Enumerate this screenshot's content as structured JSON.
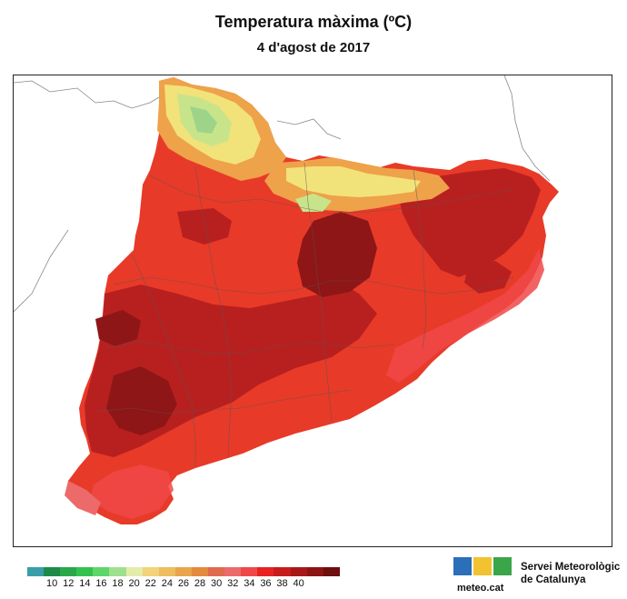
{
  "title": "Temperatura màxima (ºC)",
  "subtitle": "4 d'agost de 2017",
  "legend": {
    "colors": [
      "#3a9ea8",
      "#1e8a4a",
      "#2aa84a",
      "#34c24e",
      "#5fd66a",
      "#9fe08e",
      "#e4ecaa",
      "#f2d27a",
      "#eebd5e",
      "#e9a44c",
      "#e48a3e",
      "#e06a4e",
      "#ec6a6a",
      "#f04848",
      "#e82222",
      "#c81c1c",
      "#a81818",
      "#8c1414",
      "#6e0e0e"
    ],
    "labels": [
      "10",
      "12",
      "14",
      "16",
      "18",
      "20",
      "22",
      "24",
      "26",
      "28",
      "30",
      "32",
      "34",
      "36",
      "38",
      "40"
    ]
  },
  "colors": {
    "region_fill": "#e83a28",
    "hot_fill": "#a81c1c",
    "hottest_fill": "#7e1212",
    "mid_fill": "#d42626",
    "mountain_yellow": "#f2e27a",
    "mountain_green": "#9ed48a",
    "mountain_orange": "#eea24a",
    "borders": "#555555",
    "outside_borders": "#888888"
  },
  "logo": {
    "site": "meteo.cat",
    "agency_line1": "Servei Meteorològic",
    "agency_line2": "de Catalunya"
  }
}
